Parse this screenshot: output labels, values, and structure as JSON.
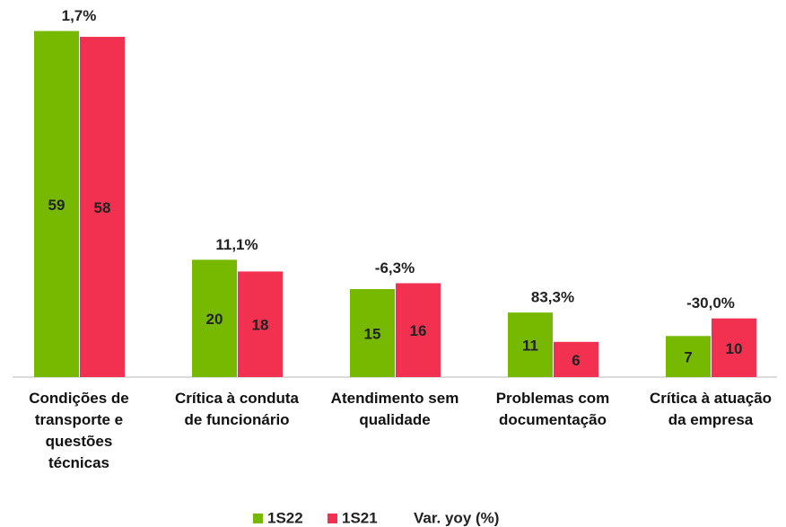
{
  "chart_data": {
    "type": "bar",
    "categories": [
      "Condições de transporte e questões técnicas",
      "Crítica à conduta de funcionário",
      "Atendimento sem qualidade",
      "Problemas com documentação",
      "Crítica à atuação da empresa"
    ],
    "series": [
      {
        "name": "1S22",
        "color": "#77b800",
        "values": [
          59,
          20,
          15,
          11,
          7
        ]
      },
      {
        "name": "1S21",
        "color": "#f2304f",
        "values": [
          58,
          18,
          16,
          6,
          10
        ]
      }
    ],
    "annotations": [
      "1,7%",
      "11,1%",
      "-6,3%",
      "83,3%",
      "-30,0%"
    ],
    "legend_note": "Var. yoy (%)",
    "ylim": [
      0,
      60
    ]
  }
}
